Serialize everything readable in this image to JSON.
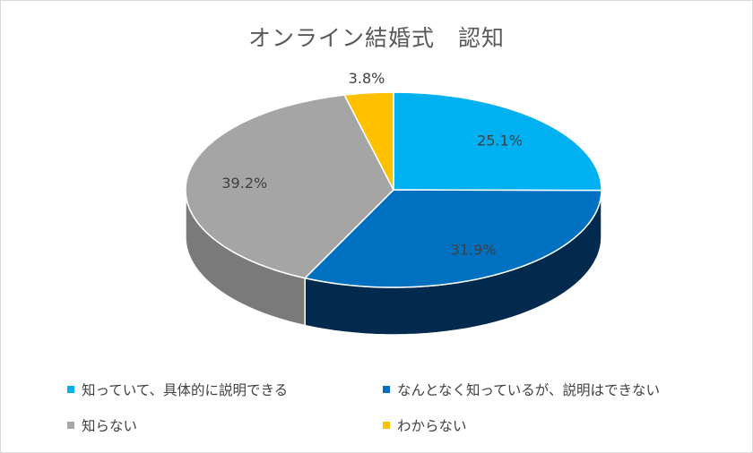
{
  "chart_data": {
    "type": "pie",
    "title": "オンライン結婚式　認知",
    "series": [
      {
        "name": "",
        "slices": [
          {
            "label": "知っていて、具体的に説明できる",
            "value": 25.1,
            "value_label": "25.1%",
            "color": "#00B0F0",
            "side_color": "#007CA8"
          },
          {
            "label": "なんとなく知っているが、説明はできない",
            "value": 31.9,
            "value_label": "31.9%",
            "color": "#0070C0",
            "side_color": "#022A4F"
          },
          {
            "label": "知らない",
            "value": 39.2,
            "value_label": "39.2%",
            "color": "#A5A5A5",
            "side_color": "#7A7A7A"
          },
          {
            "label": "わからない",
            "value": 3.8,
            "value_label": "3.8%",
            "color": "#FFC000",
            "side_color": "#B38600"
          }
        ]
      }
    ],
    "legend_position": "bottom",
    "style": "3d-pie"
  }
}
